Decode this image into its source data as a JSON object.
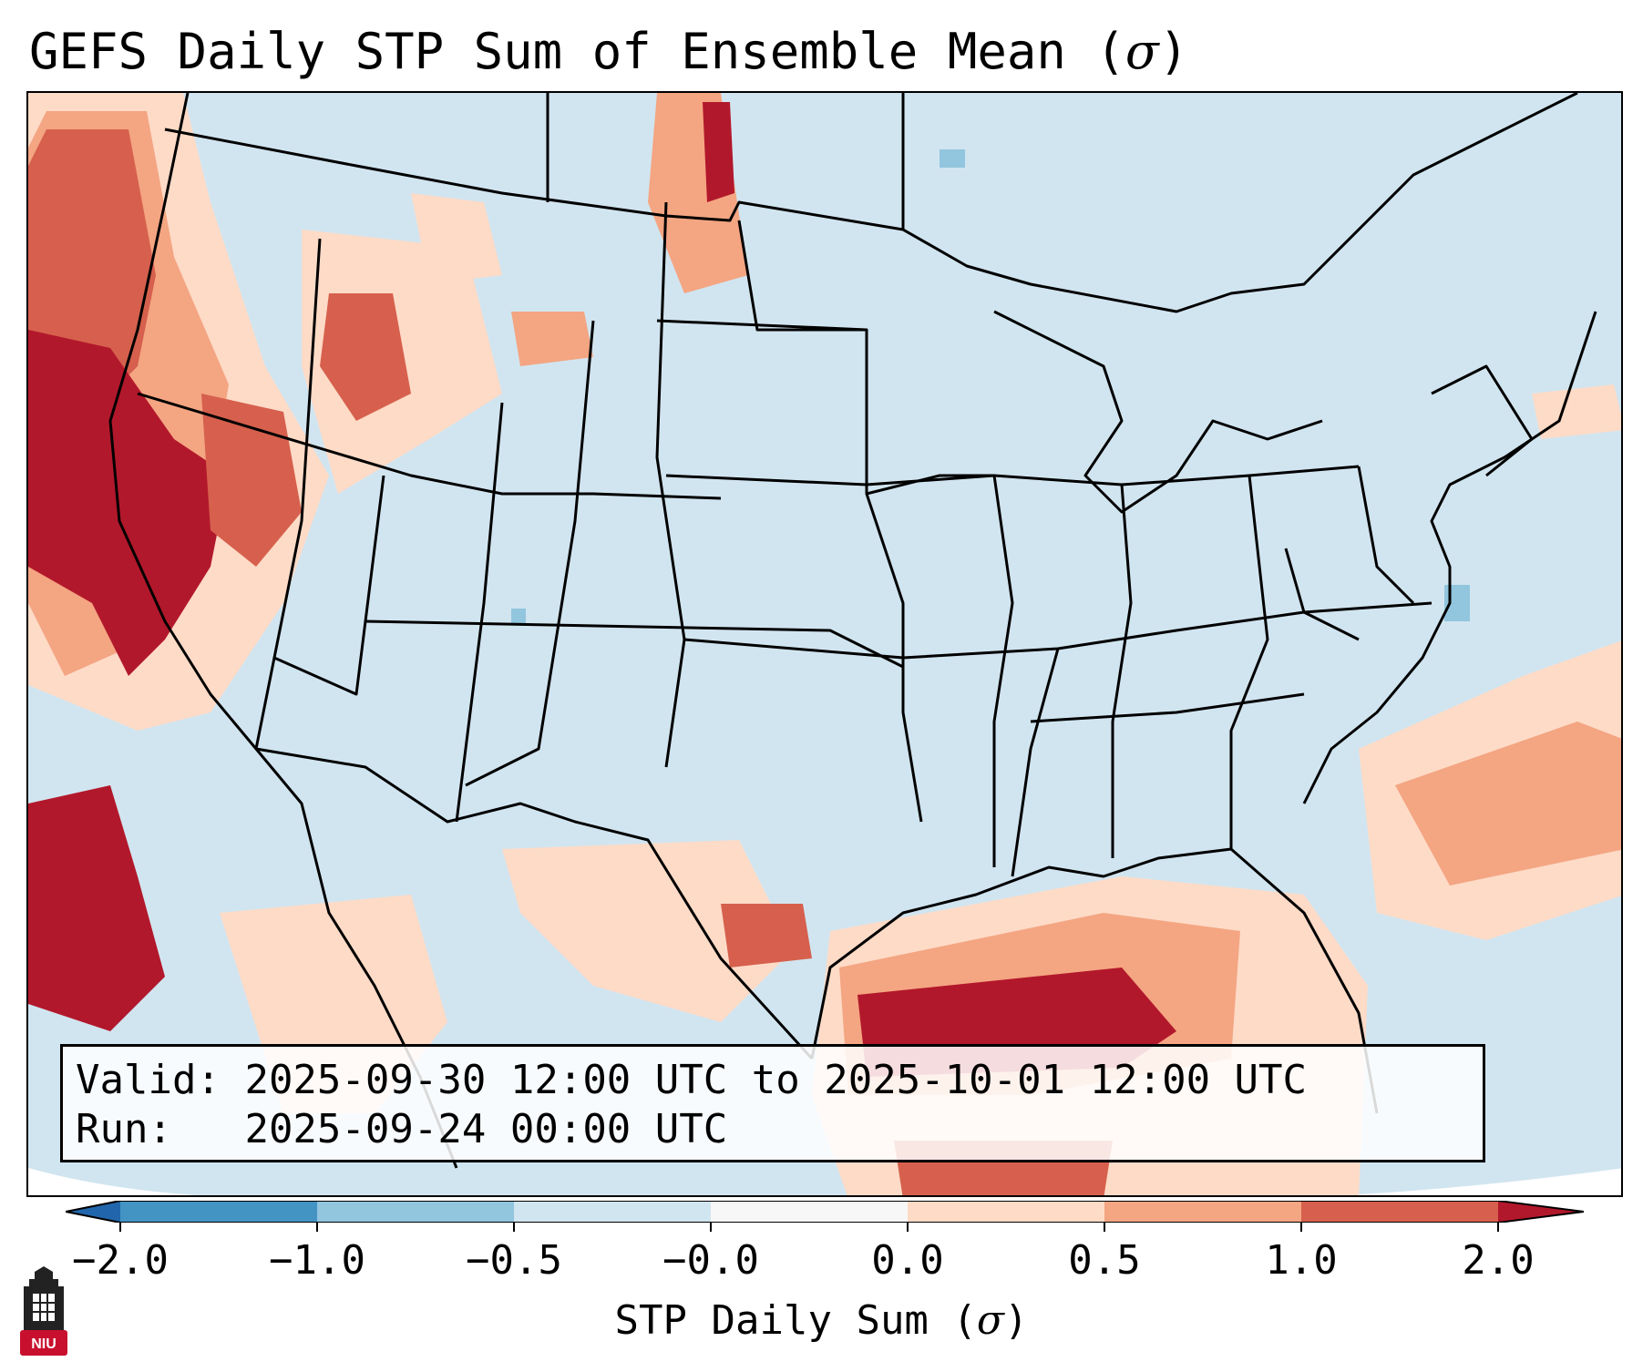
{
  "title": {
    "text": "GEFS Daily STP Sum of Ensemble Mean (",
    "symbol": "σ",
    "close": ")"
  },
  "info": {
    "valid_label": "Valid:",
    "valid_value": "2025-09-30 12:00 UTC to 2025-10-01 12:00 UTC",
    "run_label": "Run:",
    "run_value": "2025-09-24 00:00 UTC"
  },
  "colorbar": {
    "title": "STP Daily Sum (",
    "symbol": "σ",
    "close": ")",
    "tick_labels": [
      "−2.0",
      "−1.0",
      "−0.5",
      "−0.0",
      "0.0",
      "0.5",
      "1.0",
      "2.0"
    ],
    "bins": [
      {
        "range": "<-2.0",
        "color": "#2166ac"
      },
      {
        "range": "-2.0 to -1.0",
        "color": "#4393c3"
      },
      {
        "range": "-1.0 to -0.5",
        "color": "#92c5de"
      },
      {
        "range": "-0.5 to -0.0",
        "color": "#d1e5f0"
      },
      {
        "range": "-0.0 to 0.0",
        "color": "#f7f7f7"
      },
      {
        "range": "0.0 to 0.5",
        "color": "#fddbc7"
      },
      {
        "range": "0.5 to 1.0",
        "color": "#f4a582"
      },
      {
        "range": "1.0 to 2.0",
        "color": "#d6604d"
      },
      {
        "range": ">2.0",
        "color": "#b2182b"
      }
    ]
  },
  "map": {
    "background_color": "#d1e5f0",
    "region": "Continental United States",
    "features": [
      "state-borders",
      "country-borders",
      "coastlines"
    ]
  },
  "logo": {
    "text": "NIU",
    "color": "#c8102e"
  }
}
